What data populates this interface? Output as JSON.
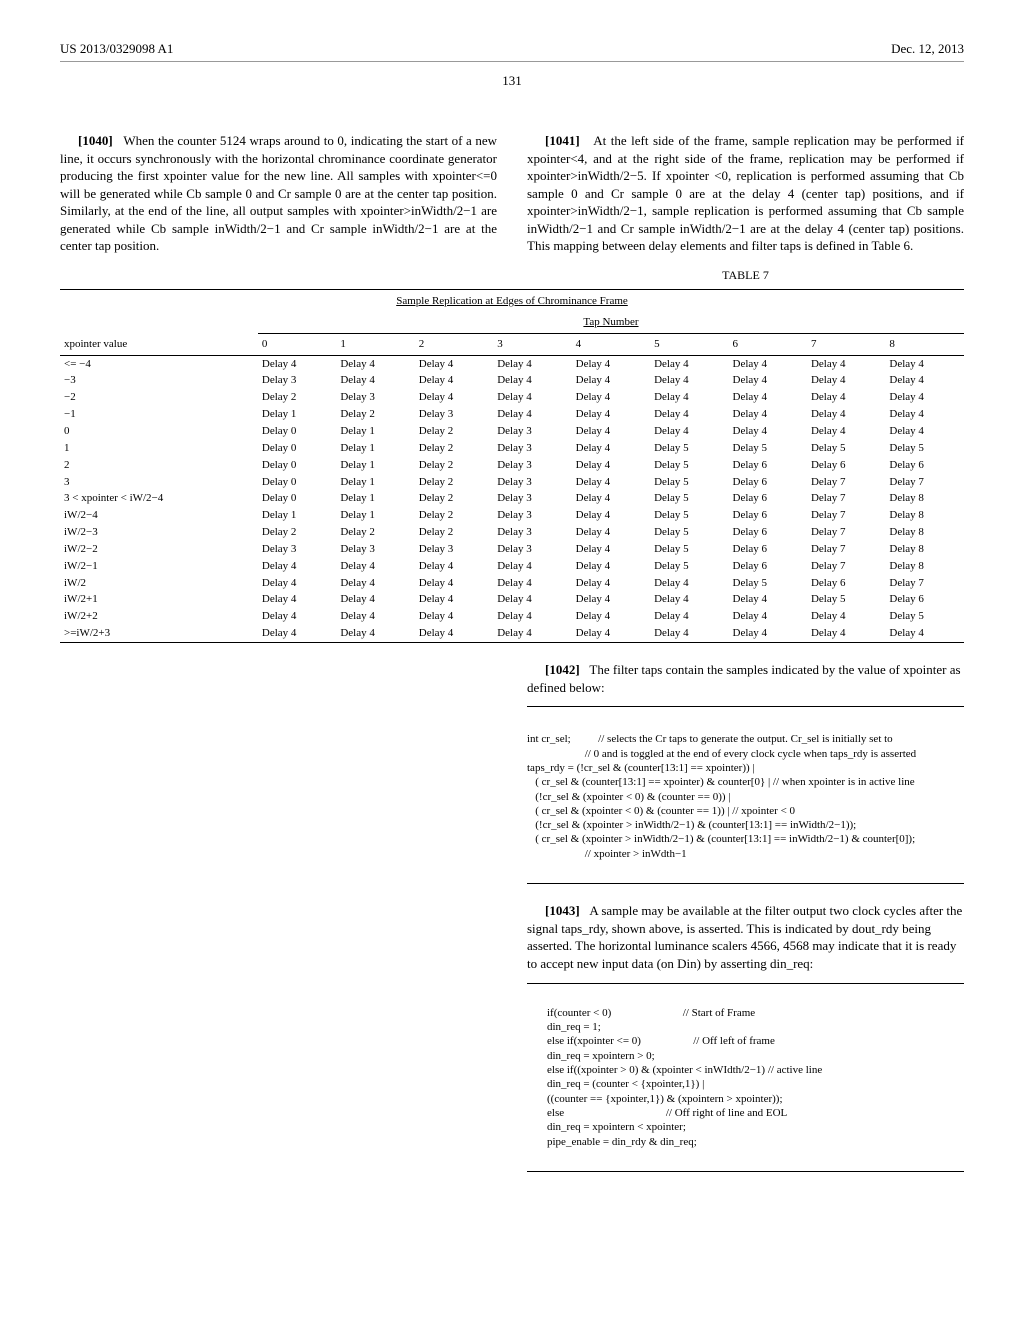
{
  "header": {
    "left": "US 2013/0329098 A1",
    "right": "Dec. 12, 2013"
  },
  "page_number": "131",
  "left_col": {
    "para1040_num": "[1040]",
    "para1040": "When the counter 5124 wraps around to 0, indicating the start of a new line, it occurs synchronously with the horizontal chrominance coordinate generator producing the first xpointer value for the new line. All samples with xpointer<=0 will be generated while Cb sample 0 and Cr sample 0 are at the center tap position. Similarly, at the end of the line, all output samples with xpointer>inWidth/2−1 are generated while Cb sample inWidth/2−1 and Cr sample inWidth/2−1 are at the center tap position."
  },
  "right_col": {
    "para1041_num": "[1041]",
    "para1041": "At the left side of the frame, sample replication may be performed if xpointer<4, and at the right side of the frame, replication may be performed if xpointer>inWidth/2−5. If xpointer <0, replication is performed assuming that Cb sample 0 and Cr sample 0 are at the delay 4 (center tap) positions, and if xpointer>inWidth/2−1, sample replication is performed assuming that Cb sample inWidth/2−1 and Cr sample inWidth/2−1 are at the delay 4 (center tap) positions. This mapping between delay elements and filter taps is defined in Table 6."
  },
  "table7": {
    "label": "TABLE 7",
    "subtitle": "Sample Replication at Edges of Chrominance Frame",
    "tap_header": "Tap Number",
    "col_header_first": "xpointer value",
    "tap_numbers": [
      "0",
      "1",
      "2",
      "3",
      "4",
      "5",
      "6",
      "7",
      "8"
    ],
    "rows": [
      {
        "k": "<= −4",
        "v": [
          "Delay 4",
          "Delay 4",
          "Delay 4",
          "Delay 4",
          "Delay 4",
          "Delay 4",
          "Delay 4",
          "Delay 4",
          "Delay 4"
        ]
      },
      {
        "k": "−3",
        "v": [
          "Delay 3",
          "Delay 4",
          "Delay 4",
          "Delay 4",
          "Delay 4",
          "Delay 4",
          "Delay 4",
          "Delay 4",
          "Delay 4"
        ]
      },
      {
        "k": "−2",
        "v": [
          "Delay 2",
          "Delay 3",
          "Delay 4",
          "Delay 4",
          "Delay 4",
          "Delay 4",
          "Delay 4",
          "Delay 4",
          "Delay 4"
        ]
      },
      {
        "k": "−1",
        "v": [
          "Delay 1",
          "Delay 2",
          "Delay 3",
          "Delay 4",
          "Delay 4",
          "Delay 4",
          "Delay 4",
          "Delay 4",
          "Delay 4"
        ]
      },
      {
        "k": "0",
        "v": [
          "Delay 0",
          "Delay 1",
          "Delay 2",
          "Delay 3",
          "Delay 4",
          "Delay 4",
          "Delay 4",
          "Delay 4",
          "Delay 4"
        ]
      },
      {
        "k": "1",
        "v": [
          "Delay 0",
          "Delay 1",
          "Delay 2",
          "Delay 3",
          "Delay 4",
          "Delay 5",
          "Delay 5",
          "Delay 5",
          "Delay 5"
        ]
      },
      {
        "k": "2",
        "v": [
          "Delay 0",
          "Delay 1",
          "Delay 2",
          "Delay 3",
          "Delay 4",
          "Delay 5",
          "Delay 6",
          "Delay 6",
          "Delay 6"
        ]
      },
      {
        "k": "3",
        "v": [
          "Delay 0",
          "Delay 1",
          "Delay 2",
          "Delay 3",
          "Delay 4",
          "Delay 5",
          "Delay 6",
          "Delay 7",
          "Delay 7"
        ]
      },
      {
        "k": "3 < xpointer < iW/2−4",
        "v": [
          "Delay 0",
          "Delay 1",
          "Delay 2",
          "Delay 3",
          "Delay 4",
          "Delay 5",
          "Delay 6",
          "Delay 7",
          "Delay 8"
        ]
      },
      {
        "k": "iW/2−4",
        "v": [
          "Delay 1",
          "Delay 1",
          "Delay 2",
          "Delay 3",
          "Delay 4",
          "Delay 5",
          "Delay 6",
          "Delay 7",
          "Delay 8"
        ]
      },
      {
        "k": "iW/2−3",
        "v": [
          "Delay 2",
          "Delay 2",
          "Delay 2",
          "Delay 3",
          "Delay 4",
          "Delay 5",
          "Delay 6",
          "Delay 7",
          "Delay 8"
        ]
      },
      {
        "k": "iW/2−2",
        "v": [
          "Delay 3",
          "Delay 3",
          "Delay 3",
          "Delay 3",
          "Delay 4",
          "Delay 5",
          "Delay 6",
          "Delay 7",
          "Delay 8"
        ]
      },
      {
        "k": "iW/2−1",
        "v": [
          "Delay 4",
          "Delay 4",
          "Delay 4",
          "Delay 4",
          "Delay 4",
          "Delay 5",
          "Delay 6",
          "Delay 7",
          "Delay 8"
        ]
      },
      {
        "k": "iW/2",
        "v": [
          "Delay 4",
          "Delay 4",
          "Delay 4",
          "Delay 4",
          "Delay 4",
          "Delay 4",
          "Delay 5",
          "Delay 6",
          "Delay 7"
        ]
      },
      {
        "k": "iW/2+1",
        "v": [
          "Delay 4",
          "Delay 4",
          "Delay 4",
          "Delay 4",
          "Delay 4",
          "Delay 4",
          "Delay 4",
          "Delay 5",
          "Delay 6"
        ]
      },
      {
        "k": "iW/2+2",
        "v": [
          "Delay 4",
          "Delay 4",
          "Delay 4",
          "Delay 4",
          "Delay 4",
          "Delay 4",
          "Delay 4",
          "Delay 4",
          "Delay 5"
        ]
      },
      {
        "k": ">=iW/2+3",
        "v": [
          "Delay 4",
          "Delay 4",
          "Delay 4",
          "Delay 4",
          "Delay 4",
          "Delay 4",
          "Delay 4",
          "Delay 4",
          "Delay 4"
        ]
      }
    ]
  },
  "para1042_num": "[1042]",
  "para1042": "The filter taps contain the samples indicated by the value of xpointer as defined below:",
  "code1": "int cr_sel;          // selects the Cr taps to generate the output. Cr_sel is initially set to\n                     // 0 and is toggled at the end of every clock cycle when taps_rdy is asserted\ntaps_rdy = (!cr_sel & (counter[13:1] == xpointer)) |\n   ( cr_sel & (counter[13:1] == xpointer) & counter[0} | // when xpointer is in active line\n   (!cr_sel & (xpointer < 0) & (counter == 0)) |\n   ( cr_sel & (xpointer < 0) & (counter == 1)) | // xpointer < 0\n   (!cr_sel & (xpointer > inWidth/2−1) & (counter[13:1] == inWidth/2−1));\n   ( cr_sel & (xpointer > inWidth/2−1) & (counter[13:1] == inWidth/2−1) & counter[0]);\n                     // xpointer > inWdth−1",
  "para1043_num": "[1043]",
  "para1043": "A sample may be available at the filter output two clock cycles after the signal taps_rdy, shown above, is asserted. This is indicated by dout_rdy being asserted. The horizontal luminance scalers 4566, 4568 may indicate that it is ready to accept new input data (on Din) by asserting din_req:",
  "code2": "if(counter < 0)                          // Start of Frame\ndin_req = 1;\nelse if(xpointer <= 0)                   // Off left of frame\ndin_req = xpointern > 0;\nelse if((xpointer > 0) & (xpointer < inWIdth/2−1) // active line\ndin_req = (counter < {xpointer,1}) |\n((counter == {xpointer,1}) & (xpointern > xpointer));\nelse                                     // Off right of line and EOL\ndin_req = xpointern < xpointer;\npipe_enable = din_rdy & din_req;"
}
